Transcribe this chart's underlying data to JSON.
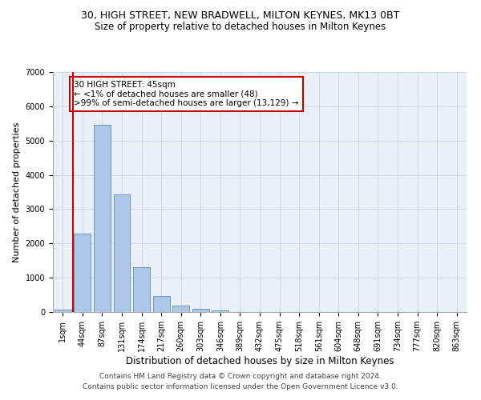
{
  "title1": "30, HIGH STREET, NEW BRADWELL, MILTON KEYNES, MK13 0BT",
  "title2": "Size of property relative to detached houses in Milton Keynes",
  "xlabel": "Distribution of detached houses by size in Milton Keynes",
  "ylabel": "Number of detached properties",
  "footer1": "Contains HM Land Registry data © Crown copyright and database right 2024.",
  "footer2": "Contains public sector information licensed under the Open Government Licence v3.0.",
  "bar_labels": [
    "1sqm",
    "44sqm",
    "87sqm",
    "131sqm",
    "174sqm",
    "217sqm",
    "260sqm",
    "303sqm",
    "346sqm",
    "389sqm",
    "432sqm",
    "475sqm",
    "518sqm",
    "561sqm",
    "604sqm",
    "648sqm",
    "691sqm",
    "734sqm",
    "777sqm",
    "820sqm",
    "863sqm"
  ],
  "bar_values": [
    80,
    2280,
    5450,
    3420,
    1310,
    470,
    185,
    95,
    50,
    0,
    0,
    0,
    0,
    0,
    0,
    0,
    0,
    0,
    0,
    0,
    0
  ],
  "bar_color": "#aec6e8",
  "bar_edge_color": "#5a8fc2",
  "highlight_line_color": "#cc0000",
  "annotation_text": "30 HIGH STREET: 45sqm\n← <1% of detached houses are smaller (48)\n>99% of semi-detached houses are larger (13,129) →",
  "annotation_box_color": "#cc0000",
  "ylim": [
    0,
    7000
  ],
  "yticks": [
    0,
    1000,
    2000,
    3000,
    4000,
    5000,
    6000,
    7000
  ],
  "grid_color": "#c8d4e8",
  "bg_color": "#eaf0f8",
  "title1_fontsize": 9,
  "title2_fontsize": 8.5,
  "xlabel_fontsize": 8.5,
  "ylabel_fontsize": 8,
  "tick_fontsize": 7,
  "footer_fontsize": 6.5,
  "annot_fontsize": 7.5
}
